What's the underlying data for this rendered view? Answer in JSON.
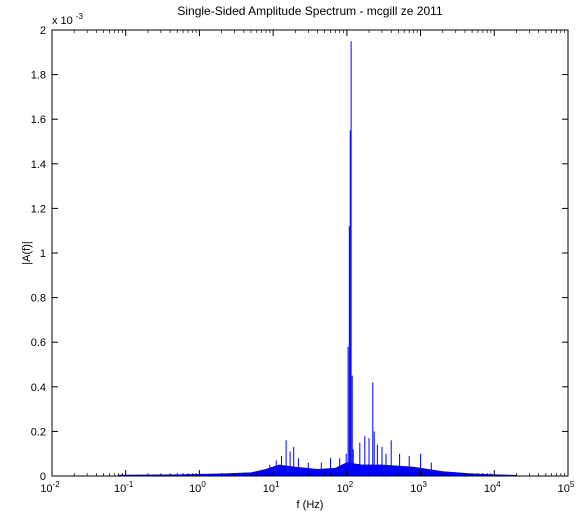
{
  "chart_data": {
    "type": "line",
    "title": "Single-Sided Amplitude Spectrum - mcgill ze 2011",
    "xlabel": "f (Hz)",
    "ylabel": "|A(f)|",
    "y_multiplier_base": "x 10",
    "y_multiplier_exp": "-3",
    "xscale": "log",
    "xlim": [
      0.01,
      100000
    ],
    "ylim": [
      0,
      0.002
    ],
    "x_ticks": [
      {
        "base": "10",
        "exp": "-2",
        "value": 0.01
      },
      {
        "base": "10",
        "exp": "-1",
        "value": 0.1
      },
      {
        "base": "10",
        "exp": "0",
        "value": 1
      },
      {
        "base": "10",
        "exp": "1",
        "value": 10
      },
      {
        "base": "10",
        "exp": "2",
        "value": 100
      },
      {
        "base": "10",
        "exp": "3",
        "value": 1000
      },
      {
        "base": "10",
        "exp": "4",
        "value": 10000
      },
      {
        "base": "10",
        "exp": "5",
        "value": 100000
      }
    ],
    "y_ticks": [
      "0",
      "0.2",
      "0.4",
      "0.6",
      "0.8",
      "1",
      "1.2",
      "1.4",
      "1.6",
      "1.8",
      "2"
    ],
    "grid": false,
    "series_color": "#0000ff",
    "baseline": [
      {
        "f": 0.08,
        "a": 4e-06
      },
      {
        "f": 0.5,
        "a": 6e-06
      },
      {
        "f": 2,
        "a": 1e-05
      },
      {
        "f": 5,
        "a": 1.5e-05
      },
      {
        "f": 8,
        "a": 3e-05
      },
      {
        "f": 12,
        "a": 5e-05
      },
      {
        "f": 20,
        "a": 4e-05
      },
      {
        "f": 40,
        "a": 3e-05
      },
      {
        "f": 70,
        "a": 3.5e-05
      },
      {
        "f": 100,
        "a": 6e-05
      },
      {
        "f": 160,
        "a": 5e-05
      },
      {
        "f": 300,
        "a": 5e-05
      },
      {
        "f": 800,
        "a": 4e-05
      },
      {
        "f": 2000,
        "a": 2e-05
      },
      {
        "f": 5000,
        "a": 1e-05
      },
      {
        "f": 10000,
        "a": 6e-06
      },
      {
        "f": 20000,
        "a": 3e-06
      }
    ],
    "peaks": [
      {
        "f": 0.09,
        "a": 1e-05
      },
      {
        "f": 9,
        "a": 5e-05
      },
      {
        "f": 11,
        "a": 7e-05
      },
      {
        "f": 13,
        "a": 9e-05
      },
      {
        "f": 15,
        "a": 0.00016
      },
      {
        "f": 17,
        "a": 0.00011
      },
      {
        "f": 19,
        "a": 0.00013
      },
      {
        "f": 22,
        "a": 8e-05
      },
      {
        "f": 30,
        "a": 6e-05
      },
      {
        "f": 45,
        "a": 6e-05
      },
      {
        "f": 60,
        "a": 8e-05
      },
      {
        "f": 80,
        "a": 8e-05
      },
      {
        "f": 98,
        "a": 0.0001
      },
      {
        "f": 104,
        "a": 0.00058
      },
      {
        "f": 108,
        "a": 0.00112
      },
      {
        "f": 111,
        "a": 0.00155
      },
      {
        "f": 114,
        "a": 0.00195
      },
      {
        "f": 118,
        "a": 0.00045
      },
      {
        "f": 122,
        "a": 0.00012
      },
      {
        "f": 150,
        "a": 0.00015
      },
      {
        "f": 175,
        "a": 0.00018
      },
      {
        "f": 200,
        "a": 0.00017
      },
      {
        "f": 225,
        "a": 0.00042
      },
      {
        "f": 235,
        "a": 0.0002
      },
      {
        "f": 260,
        "a": 0.00014
      },
      {
        "f": 300,
        "a": 0.00013
      },
      {
        "f": 340,
        "a": 0.0001
      },
      {
        "f": 400,
        "a": 0.00016
      },
      {
        "f": 520,
        "a": 0.0001
      },
      {
        "f": 700,
        "a": 9e-05
      },
      {
        "f": 1000,
        "a": 0.0001
      },
      {
        "f": 1400,
        "a": 6e-05
      }
    ]
  }
}
